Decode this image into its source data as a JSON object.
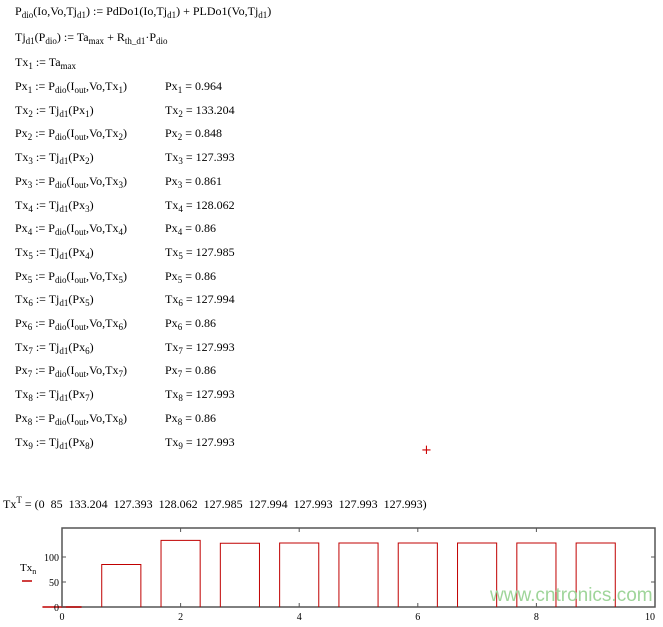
{
  "definitions": [
    {
      "expr": "P_{dio}(Io,Vo,Tj_{d1}) := PdDo1(Io,Tj_{d1}) + PLDo1(Vo,Tj_{d1})"
    },
    {
      "expr": "Tj_{d1}(P_{dio}) := Ta_{max} + R_{th_d1}·P_{dio}"
    },
    {
      "expr": "Tx_{1} := Ta_{max}"
    }
  ],
  "iterations": [
    {
      "expr": "Px_{1} := P_{dio}(I_{out},Vo,Tx_{1})",
      "result": "Px_{1} = 0.964"
    },
    {
      "expr": "Tx_{2} := Tj_{d1}(Px_{1})",
      "result": "Tx_{2} = 133.204"
    },
    {
      "expr": "Px_{2} := P_{dio}(I_{out},Vo,Tx_{2})",
      "result": "Px_{2} = 0.848"
    },
    {
      "expr": "Tx_{3} := Tj_{d1}(Px_{2})",
      "result": "Tx_{3} = 127.393"
    },
    {
      "expr": "Px_{3} := P_{dio}(I_{out},Vo,Tx_{3})",
      "result": "Px_{3} = 0.861"
    },
    {
      "expr": "Tx_{4} := Tj_{d1}(Px_{3})",
      "result": "Tx_{4} = 128.062"
    },
    {
      "expr": "Px_{4} := P_{dio}(I_{out},Vo,Tx_{4})",
      "result": "Px_{4} = 0.86"
    },
    {
      "expr": "Tx_{5} := Tj_{d1}(Px_{4})",
      "result": "Tx_{5} = 127.985"
    },
    {
      "expr": "Px_{5} := P_{dio}(I_{out},Vo,Tx_{5})",
      "result": "Px_{5} = 0.86"
    },
    {
      "expr": "Tx_{6} := Tj_{d1}(Px_{5})",
      "result": "Tx_{6} = 127.994"
    },
    {
      "expr": "Px_{6} := P_{dio}(I_{out},Vo,Tx_{6})",
      "result": "Px_{6} = 0.86"
    },
    {
      "expr": "Tx_{7} := Tj_{d1}(Px_{6})",
      "result": "Tx_{7} = 127.993"
    },
    {
      "expr": "Px_{7} := P_{dio}(I_{out},Vo,Tx_{7})",
      "result": "Px_{7} = 0.86"
    },
    {
      "expr": "Tx_{8} := Tj_{d1}(Px_{7})",
      "result": "Tx_{8} = 127.993"
    },
    {
      "expr": "Px_{8} := P_{dio}(I_{out},Vo,Tx_{8})",
      "result": "Px_{8} = 0.86"
    },
    {
      "expr": "Tx_{9} := Tj_{d1}(Px_{8})",
      "result": "Tx_{9} = 127.993"
    }
  ],
  "transpose": "Tx^{T} = (0  85  133.204  127.393  128.062  127.985  127.994  127.993  127.993  127.993)",
  "cursor_icon": "red-crosshair",
  "cursor_glyph": "+",
  "watermark": "www.cntronics.com",
  "chart_data": {
    "type": "bar",
    "x": [
      0,
      1,
      2,
      3,
      4,
      5,
      6,
      7,
      8,
      9
    ],
    "values": [
      0,
      85,
      133.204,
      127.393,
      128.062,
      127.985,
      127.994,
      127.993,
      127.993,
      127.993
    ],
    "ylabel": "Tx_{n}",
    "xlim": [
      0,
      10
    ],
    "ylim": [
      0,
      158
    ],
    "xticks": [
      "0",
      "2",
      "4",
      "6",
      "8",
      "10"
    ],
    "yticks": [
      "0",
      "50",
      "100"
    ],
    "bar_color": "#c00000",
    "grid": false
  }
}
